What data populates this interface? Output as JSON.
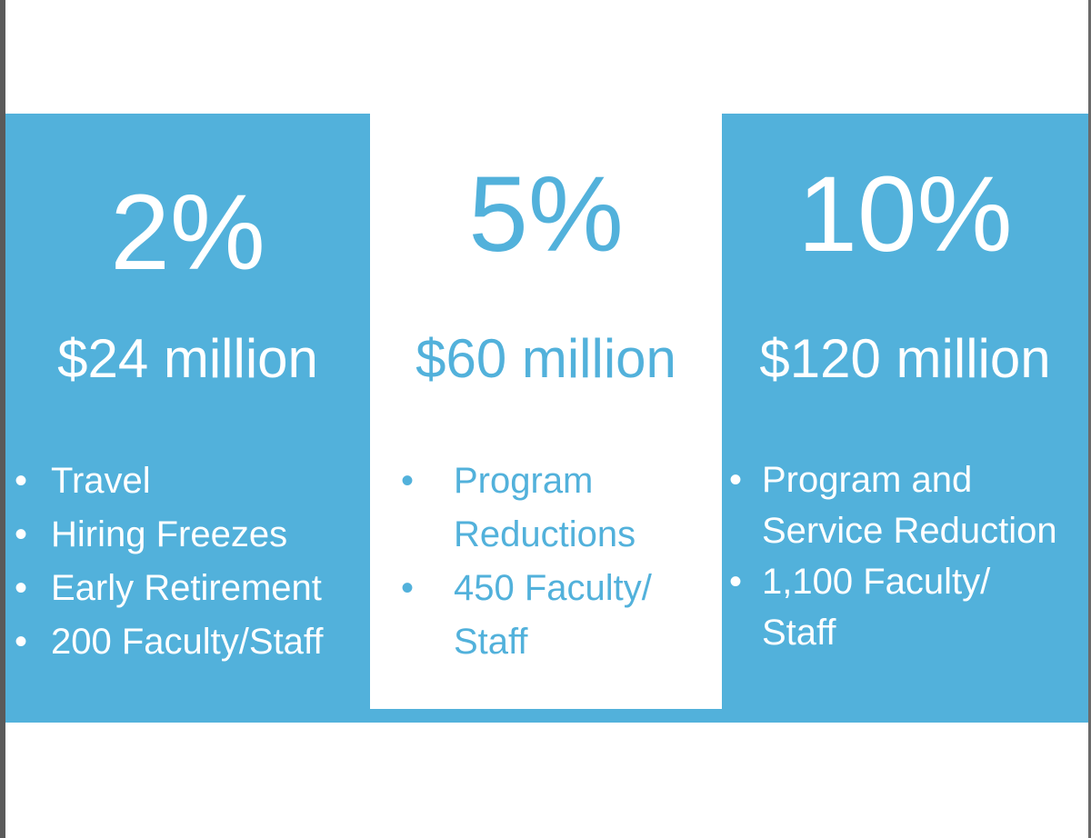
{
  "colors": {
    "accent": "#52b1db",
    "background": "#ffffff"
  },
  "tiers": [
    {
      "percent": "2%",
      "amount": "$24 million",
      "bullets": [
        "Travel",
        "Hiring Freezes",
        "Early Retirement",
        "200 Faculty/Staff"
      ]
    },
    {
      "percent": "5%",
      "amount": "$60 million",
      "bullets": [
        "Program Reductions",
        "450 Faculty/ Staff"
      ]
    },
    {
      "percent": "10%",
      "amount": "$120 million",
      "bullets": [
        "Program and Service Reduction",
        "1,100 Faculty/ Staff"
      ]
    }
  ]
}
